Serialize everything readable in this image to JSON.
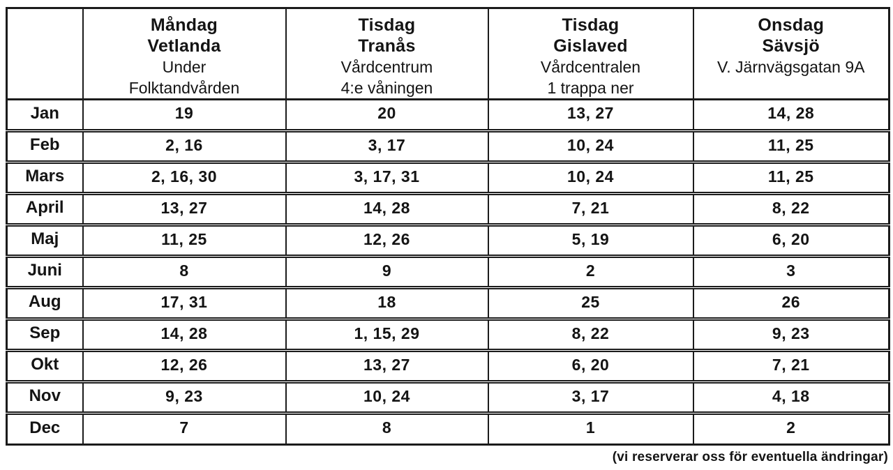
{
  "table": {
    "columns": [
      {
        "day": "Måndag",
        "city": "Vetlanda",
        "address_lines": [
          "Under",
          "Folktandvården"
        ]
      },
      {
        "day": "Tisdag",
        "city": "Tranås",
        "address_lines": [
          "Vårdcentrum",
          "4:e våningen"
        ]
      },
      {
        "day": "Tisdag",
        "city": "Gislaved",
        "address_lines": [
          "Vårdcentralen",
          "1 trappa ner"
        ]
      },
      {
        "day": "Onsdag",
        "city": "Sävsjö",
        "address_lines": [
          "V. Järnvägsgatan 9A"
        ]
      }
    ],
    "rows": [
      {
        "month": "Jan",
        "dates": [
          "19",
          "20",
          "13, 27",
          "14, 28"
        ]
      },
      {
        "month": "Feb",
        "dates": [
          "2, 16",
          "3, 17",
          "10, 24",
          "11, 25"
        ]
      },
      {
        "month": "Mars",
        "dates": [
          "2, 16, 30",
          "3, 17, 31",
          "10, 24",
          "11, 25"
        ]
      },
      {
        "month": "April",
        "dates": [
          "13, 27",
          "14, 28",
          "7, 21",
          "8, 22"
        ]
      },
      {
        "month": "Maj",
        "dates": [
          "11, 25",
          "12, 26",
          "5, 19",
          "6, 20"
        ]
      },
      {
        "month": "Juni",
        "dates": [
          "8",
          "9",
          "2",
          "3"
        ]
      },
      {
        "month": "Aug",
        "dates": [
          "17, 31",
          "18",
          "25",
          "26"
        ]
      },
      {
        "month": "Sep",
        "dates": [
          "14, 28",
          "1, 15, 29",
          "8, 22",
          "9, 23"
        ]
      },
      {
        "month": "Okt",
        "dates": [
          "12, 26",
          "13, 27",
          "6, 20",
          "7, 21"
        ]
      },
      {
        "month": "Nov",
        "dates": [
          "9, 23",
          "10, 24",
          "3, 17",
          "4, 18"
        ]
      },
      {
        "month": "Dec",
        "dates": [
          "7",
          "8",
          "1",
          "2"
        ]
      }
    ]
  },
  "footer": {
    "note": "(vi reserverar oss för eventuella ändringar)"
  },
  "colors": {
    "border": "#1b1b1b",
    "text": "#141414",
    "background": "#ffffff"
  }
}
